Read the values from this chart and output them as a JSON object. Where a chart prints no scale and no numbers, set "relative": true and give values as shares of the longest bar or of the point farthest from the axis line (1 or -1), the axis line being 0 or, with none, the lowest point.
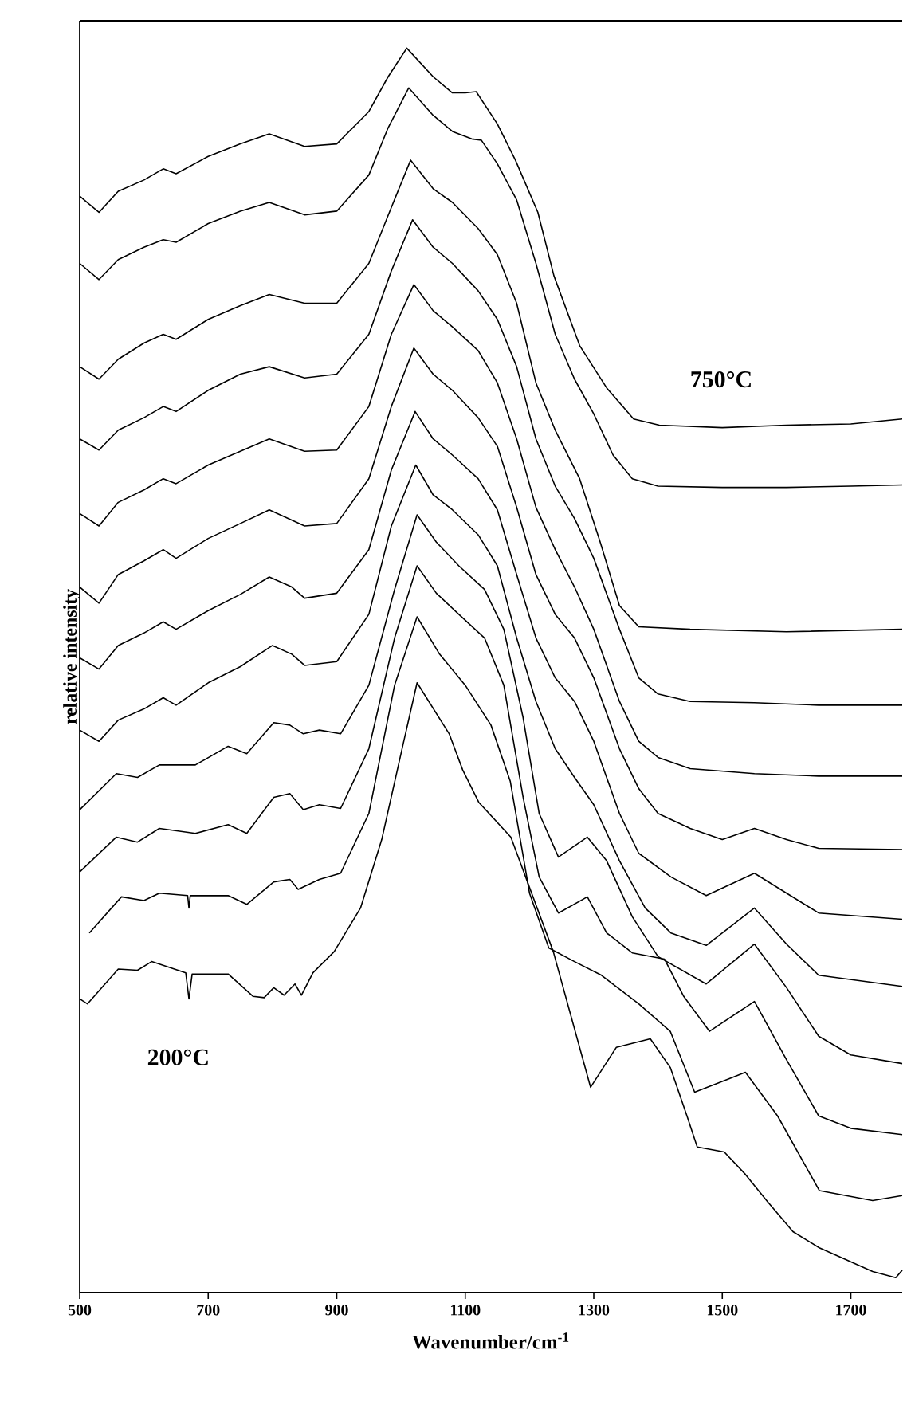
{
  "chart_data": {
    "type": "line",
    "relative": true,
    "xlabel": "Wavenumber/cm$^{-1}$",
    "ylabel": "relative intensity",
    "xlim": [
      500,
      1780
    ],
    "xticks": [
      500,
      700,
      900,
      1100,
      1300,
      1500,
      1700
    ],
    "series": [
      {
        "name": "750°C",
        "color": "#000000",
        "x": [
          500,
          530,
          560,
          600,
          630,
          650,
          700,
          750,
          795,
          850,
          900,
          950,
          980,
          1009,
          1050,
          1080,
          1100,
          1117,
          1150,
          1178,
          1213,
          1238,
          1278,
          1320,
          1362,
          1402,
          1500,
          1600,
          1700,
          1780
        ],
        "values": [
          0.881,
          0.868,
          0.885,
          0.894,
          0.903,
          0.899,
          0.913,
          0.923,
          0.931,
          0.921,
          0.923,
          0.949,
          0.977,
          1.0,
          0.977,
          0.964,
          0.964,
          0.965,
          0.939,
          0.91,
          0.868,
          0.817,
          0.761,
          0.727,
          0.702,
          0.697,
          0.695,
          0.697,
          0.698,
          0.702
        ]
      },
      {
        "color": "#000000",
        "x": [
          500,
          530,
          560,
          600,
          630,
          650,
          700,
          750,
          795,
          850,
          900,
          950,
          980,
          1012,
          1050,
          1080,
          1110,
          1125,
          1150,
          1180,
          1210,
          1240,
          1270,
          1300,
          1330,
          1360,
          1400,
          1500,
          1600,
          1700,
          1780
        ],
        "values": [
          0.827,
          0.814,
          0.83,
          0.84,
          0.846,
          0.844,
          0.859,
          0.869,
          0.876,
          0.866,
          0.869,
          0.898,
          0.936,
          0.968,
          0.946,
          0.933,
          0.927,
          0.926,
          0.907,
          0.878,
          0.827,
          0.77,
          0.734,
          0.706,
          0.673,
          0.654,
          0.648,
          0.647,
          0.647,
          0.648,
          0.649
        ]
      },
      {
        "color": "#000000",
        "x": [
          500,
          530,
          560,
          600,
          630,
          650,
          700,
          750,
          795,
          850,
          900,
          950,
          985,
          1015,
          1050,
          1080,
          1120,
          1150,
          1180,
          1210,
          1240,
          1278,
          1310,
          1340,
          1370,
          1450,
          1600,
          1780
        ],
        "values": [
          0.744,
          0.734,
          0.75,
          0.763,
          0.77,
          0.766,
          0.782,
          0.793,
          0.802,
          0.795,
          0.795,
          0.827,
          0.872,
          0.91,
          0.887,
          0.876,
          0.855,
          0.834,
          0.795,
          0.731,
          0.693,
          0.654,
          0.603,
          0.552,
          0.535,
          0.533,
          0.531,
          0.533
        ]
      },
      {
        "color": "#000000",
        "x": [
          500,
          530,
          560,
          600,
          630,
          650,
          700,
          750,
          795,
          850,
          900,
          950,
          985,
          1018,
          1050,
          1080,
          1120,
          1150,
          1180,
          1210,
          1240,
          1270,
          1300,
          1340,
          1370,
          1400,
          1450,
          1550,
          1650,
          1780
        ],
        "values": [
          0.686,
          0.677,
          0.693,
          0.703,
          0.712,
          0.708,
          0.725,
          0.738,
          0.744,
          0.735,
          0.738,
          0.77,
          0.821,
          0.862,
          0.84,
          0.827,
          0.805,
          0.782,
          0.744,
          0.686,
          0.648,
          0.622,
          0.59,
          0.533,
          0.494,
          0.481,
          0.475,
          0.474,
          0.472,
          0.472
        ]
      },
      {
        "color": "#000000",
        "x": [
          500,
          530,
          560,
          600,
          630,
          650,
          700,
          750,
          795,
          850,
          900,
          950,
          985,
          1020,
          1050,
          1080,
          1120,
          1150,
          1180,
          1210,
          1240,
          1270,
          1300,
          1340,
          1370,
          1400,
          1450,
          1550,
          1650,
          1780
        ],
        "values": [
          0.626,
          0.616,
          0.635,
          0.645,
          0.654,
          0.65,
          0.665,
          0.676,
          0.686,
          0.676,
          0.677,
          0.712,
          0.77,
          0.81,
          0.789,
          0.776,
          0.757,
          0.731,
          0.686,
          0.631,
          0.597,
          0.567,
          0.533,
          0.475,
          0.443,
          0.43,
          0.421,
          0.417,
          0.415,
          0.415
        ]
      },
      {
        "color": "#000000",
        "x": [
          500,
          530,
          560,
          600,
          630,
          650,
          700,
          750,
          795,
          850,
          900,
          950,
          985,
          1020,
          1050,
          1080,
          1120,
          1150,
          1180,
          1210,
          1240,
          1270,
          1300,
          1340,
          1370,
          1400,
          1450,
          1500,
          1550,
          1600,
          1650,
          1780
        ],
        "values": [
          0.567,
          0.554,
          0.577,
          0.588,
          0.597,
          0.59,
          0.606,
          0.618,
          0.629,
          0.616,
          0.618,
          0.654,
          0.712,
          0.759,
          0.738,
          0.725,
          0.703,
          0.68,
          0.631,
          0.577,
          0.545,
          0.526,
          0.494,
          0.437,
          0.405,
          0.385,
          0.373,
          0.364,
          0.373,
          0.364,
          0.357,
          0.356
        ]
      },
      {
        "color": "#000000",
        "x": [
          500,
          530,
          560,
          600,
          630,
          650,
          700,
          750,
          795,
          830,
          850,
          900,
          950,
          985,
          1022,
          1050,
          1080,
          1120,
          1150,
          1180,
          1210,
          1240,
          1270,
          1300,
          1340,
          1370,
          1420,
          1475,
          1550,
          1600,
          1650,
          1780
        ],
        "values": [
          0.51,
          0.501,
          0.52,
          0.53,
          0.539,
          0.533,
          0.548,
          0.561,
          0.575,
          0.567,
          0.558,
          0.562,
          0.597,
          0.661,
          0.708,
          0.686,
          0.673,
          0.654,
          0.629,
          0.577,
          0.526,
          0.494,
          0.475,
          0.443,
          0.385,
          0.353,
          0.334,
          0.319,
          0.337,
          0.321,
          0.305,
          0.3
        ]
      },
      {
        "color": "#000000",
        "x": [
          500,
          530,
          560,
          600,
          630,
          650,
          700,
          750,
          800,
          830,
          850,
          900,
          950,
          985,
          1023,
          1050,
          1080,
          1120,
          1150,
          1180,
          1210,
          1240,
          1270,
          1300,
          1340,
          1380,
          1420,
          1475,
          1550,
          1600,
          1650,
          1780
        ],
        "values": [
          0.452,
          0.443,
          0.46,
          0.469,
          0.478,
          0.472,
          0.49,
          0.503,
          0.52,
          0.513,
          0.504,
          0.507,
          0.545,
          0.616,
          0.665,
          0.641,
          0.629,
          0.609,
          0.584,
          0.526,
          0.475,
          0.437,
          0.414,
          0.392,
          0.347,
          0.309,
          0.289,
          0.279,
          0.309,
          0.28,
          0.255,
          0.246
        ]
      },
      {
        "color": "#000000",
        "x": [
          500,
          557,
          590,
          624,
          680,
          731,
          760,
          802,
          827,
          848,
          873,
          906,
          950,
          990,
          1025,
          1055,
          1090,
          1130,
          1160,
          1190,
          1215,
          1245,
          1290,
          1320,
          1360,
          1400,
          1475,
          1550,
          1600,
          1650,
          1700,
          1780
        ],
        "values": [
          0.388,
          0.417,
          0.414,
          0.424,
          0.424,
          0.439,
          0.433,
          0.458,
          0.456,
          0.449,
          0.452,
          0.449,
          0.488,
          0.565,
          0.625,
          0.603,
          0.584,
          0.565,
          0.533,
          0.462,
          0.385,
          0.35,
          0.366,
          0.347,
          0.302,
          0.27,
          0.248,
          0.28,
          0.245,
          0.206,
          0.191,
          0.184
        ]
      },
      {
        "color": "#000000",
        "x": [
          500,
          557,
          590,
          624,
          680,
          731,
          760,
          802,
          827,
          848,
          873,
          906,
          950,
          990,
          1025,
          1055,
          1090,
          1130,
          1160,
          1190,
          1215,
          1245,
          1290,
          1320,
          1360,
          1410,
          1440,
          1480,
          1550,
          1600,
          1650,
          1700,
          1780
        ],
        "values": [
          0.338,
          0.366,
          0.362,
          0.373,
          0.369,
          0.376,
          0.369,
          0.398,
          0.401,
          0.388,
          0.392,
          0.389,
          0.437,
          0.526,
          0.584,
          0.562,
          0.545,
          0.526,
          0.488,
          0.398,
          0.334,
          0.305,
          0.318,
          0.289,
          0.273,
          0.268,
          0.238,
          0.21,
          0.234,
          0.187,
          0.142,
          0.132,
          0.127
        ]
      },
      {
        "color": "#000000",
        "x": [
          515,
          565,
          600,
          624,
          668,
          670,
          672,
          731,
          760,
          802,
          827,
          840,
          873,
          906,
          950,
          990,
          1025,
          1060,
          1100,
          1140,
          1170,
          1200,
          1230,
          1270,
          1312,
          1370,
          1419,
          1457,
          1511,
          1536,
          1586,
          1651,
          1734,
          1780
        ],
        "values": [
          0.289,
          0.318,
          0.315,
          0.321,
          0.319,
          0.309,
          0.319,
          0.319,
          0.312,
          0.33,
          0.332,
          0.324,
          0.332,
          0.337,
          0.385,
          0.488,
          0.543,
          0.513,
          0.488,
          0.456,
          0.411,
          0.321,
          0.277,
          0.266,
          0.255,
          0.232,
          0.21,
          0.161,
          0.172,
          0.177,
          0.142,
          0.082,
          0.074,
          0.078
        ]
      },
      {
        "name": "200°C",
        "color": "#000000",
        "x": [
          500,
          512,
          560,
          590,
          612,
          665,
          670,
          675,
          731,
          770,
          787,
          802,
          818,
          835,
          845,
          863,
          896,
          937,
          970,
          1003,
          1025,
          1075,
          1096,
          1121,
          1171,
          1237,
          1295,
          1335,
          1388,
          1419,
          1445,
          1461,
          1503,
          1536,
          1569,
          1610,
          1651,
          1734,
          1770,
          1780
        ],
        "values": [
          0.236,
          0.232,
          0.26,
          0.259,
          0.266,
          0.257,
          0.236,
          0.256,
          0.256,
          0.238,
          0.237,
          0.245,
          0.239,
          0.248,
          0.239,
          0.257,
          0.274,
          0.309,
          0.364,
          0.44,
          0.49,
          0.449,
          0.42,
          0.394,
          0.366,
          0.274,
          0.165,
          0.197,
          0.204,
          0.181,
          0.142,
          0.117,
          0.113,
          0.095,
          0.074,
          0.049,
          0.036,
          0.017,
          0.012,
          0.018
        ]
      }
    ]
  }
}
